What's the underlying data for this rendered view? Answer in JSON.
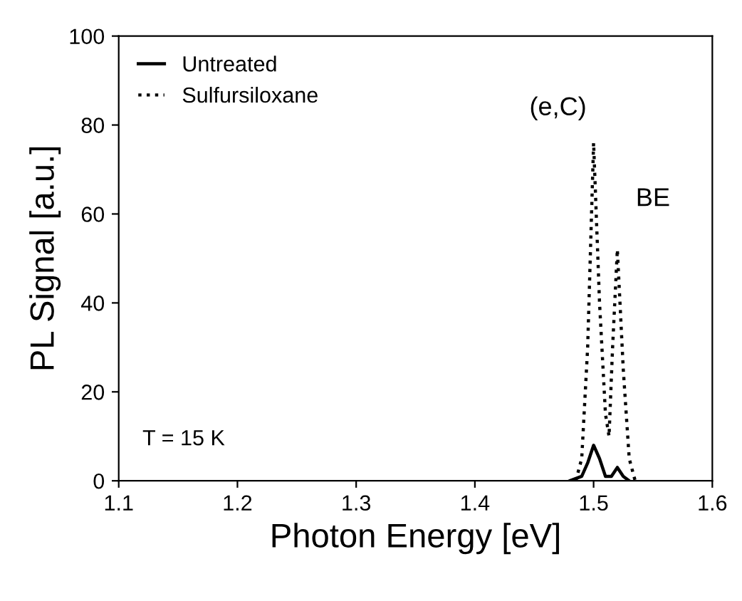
{
  "chart_data": {
    "type": "line",
    "xlabel": "Photon Energy [eV]",
    "ylabel": "PL Signal [a.u.]",
    "xlim": [
      1.1,
      1.6
    ],
    "ylim": [
      0,
      100
    ],
    "xticks": [
      1.1,
      1.2,
      1.3,
      1.4,
      1.5,
      1.6
    ],
    "yticks": [
      0,
      20,
      40,
      60,
      80,
      100
    ],
    "legend": "top left",
    "grid": false,
    "series": [
      {
        "name": "Untreated",
        "color": "#000000",
        "line_style": "solid",
        "x": [
          1.48,
          1.49,
          1.495,
          1.5,
          1.505,
          1.51,
          1.515,
          1.52,
          1.525,
          1.53
        ],
        "values": [
          0,
          1,
          4,
          8,
          5,
          1,
          1,
          3,
          1,
          0
        ]
      },
      {
        "name": "Sulfursiloxane",
        "color": "#000000",
        "line_style": "dotted",
        "x": [
          1.485,
          1.49,
          1.495,
          1.5,
          1.505,
          1.51,
          1.513,
          1.516,
          1.52,
          1.525,
          1.53,
          1.535
        ],
        "values": [
          0,
          5,
          30,
          76,
          40,
          15,
          10,
          30,
          52,
          25,
          5,
          0
        ]
      }
    ],
    "annotations": [
      {
        "text": "(e,C)",
        "x": 1.5,
        "y": 76
      },
      {
        "text": "BE",
        "x": 1.52,
        "y": 52
      },
      "T = 15 K"
    ]
  }
}
